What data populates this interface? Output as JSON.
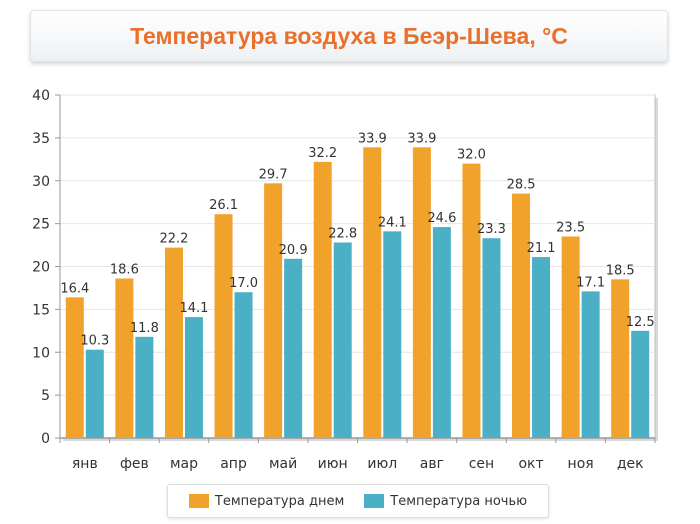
{
  "chart_data": {
    "type": "bar",
    "title": "Температура воздуха в Беэр-Шева, °С",
    "categories": [
      "янв",
      "фев",
      "мар",
      "апр",
      "май",
      "июн",
      "июл",
      "авг",
      "сен",
      "окт",
      "ноя",
      "дек"
    ],
    "series": [
      {
        "name": "Температура днем",
        "values": [
          16.4,
          18.6,
          22.2,
          26.1,
          29.7,
          32.2,
          33.9,
          33.9,
          32.0,
          28.5,
          23.5,
          18.5
        ],
        "labels": [
          "16.4",
          "18.6",
          "22.2",
          "26.1",
          "29.7",
          "32.2",
          "33.9",
          "33.9",
          "32.0",
          "28.5",
          "23.5",
          "18.5"
        ],
        "color": "#f0a22b"
      },
      {
        "name": "Температура ночью",
        "values": [
          10.3,
          11.8,
          14.1,
          17.0,
          20.9,
          22.8,
          24.1,
          24.6,
          23.3,
          21.1,
          17.1,
          12.5
        ],
        "labels": [
          "10.3",
          "11.8",
          "14.1",
          "17.0",
          "20.9",
          "22.8",
          "24.1",
          "24.6",
          "23.3",
          "21.1",
          "17.1",
          "12.5"
        ],
        "color": "#4bb0c6"
      }
    ],
    "ylim": [
      0,
      40
    ],
    "yticks": [
      "0",
      "5",
      "10",
      "15",
      "20",
      "25",
      "30",
      "35",
      "40"
    ],
    "grid": true,
    "legend": "bottom"
  }
}
